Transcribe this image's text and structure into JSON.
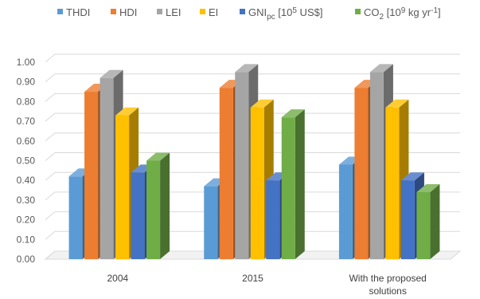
{
  "chart_data": {
    "type": "bar",
    "style": "3d-clustered-column",
    "title": "",
    "xlabel": "",
    "ylabel": "",
    "ylim": [
      0,
      1.0
    ],
    "yticks": [
      "0.00",
      "0.10",
      "0.20",
      "0.30",
      "0.40",
      "0.50",
      "0.60",
      "0.70",
      "0.80",
      "0.90",
      "1.00"
    ],
    "grid": true,
    "legend_position": "top",
    "categories": [
      "2004",
      "2015",
      "With the proposed solutions"
    ],
    "series": [
      {
        "name": "THDI",
        "color": "#5b9bd5",
        "values": [
          0.42,
          0.37,
          0.48
        ]
      },
      {
        "name": "HDI",
        "color": "#ed7d31",
        "values": [
          0.85,
          0.87,
          0.87
        ]
      },
      {
        "name": "LEI",
        "color": "#a5a5a5",
        "values": [
          0.92,
          0.95,
          0.95
        ]
      },
      {
        "name": "EI",
        "color": "#ffc000",
        "values": [
          0.73,
          0.77,
          0.77
        ]
      },
      {
        "name": "GNIpc [10^5 US$]",
        "color": "#4472c4",
        "values": [
          0.44,
          0.4,
          0.4
        ]
      },
      {
        "name": "CO2 [10^9 kg yr^-1]",
        "color": "#70ad47",
        "values": [
          0.5,
          0.72,
          0.34
        ]
      }
    ]
  }
}
